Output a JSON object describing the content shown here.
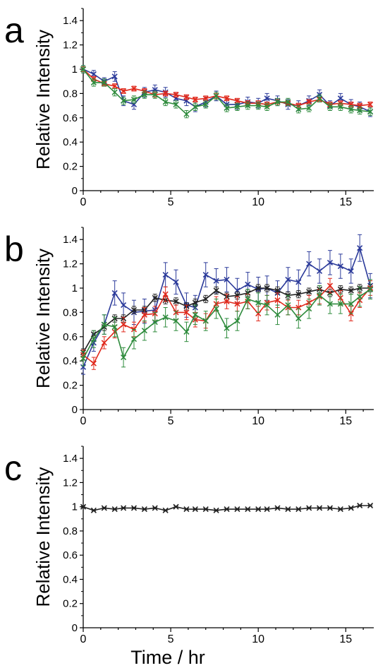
{
  "figure": {
    "x_axis_title": "Time / hr"
  },
  "colors": {
    "blue": "#2b3a9a",
    "red": "#e0291c",
    "green": "#2e8b3c",
    "black": "#222222",
    "axis": "#000000"
  },
  "chart_data": [
    {
      "panel_label": "a",
      "type": "line",
      "ylabel": "Relative Intensity",
      "xlim": [
        0,
        16.6
      ],
      "ylim": [
        0,
        1.5
      ],
      "xticks": [
        0,
        5,
        10,
        15
      ],
      "yticks": [
        0,
        0.2,
        0.4,
        0.6,
        0.8,
        1,
        1.2,
        1.4
      ],
      "x": [
        0,
        0.6,
        1.2,
        1.8,
        2.3,
        2.9,
        3.5,
        4.1,
        4.7,
        5.3,
        5.9,
        6.4,
        7.0,
        7.6,
        8.2,
        8.8,
        9.4,
        10.0,
        10.5,
        11.1,
        11.7,
        12.3,
        12.9,
        13.5,
        14.1,
        14.7,
        15.3,
        15.8,
        16.4
      ],
      "series": [
        {
          "color": "blue",
          "values": [
            1.0,
            0.96,
            0.9,
            0.94,
            0.74,
            0.71,
            0.81,
            0.83,
            0.81,
            0.76,
            0.74,
            0.69,
            0.73,
            0.78,
            0.71,
            0.71,
            0.73,
            0.72,
            0.76,
            0.74,
            0.71,
            0.7,
            0.74,
            0.79,
            0.7,
            0.76,
            0.71,
            0.69,
            0.65
          ],
          "err": [
            0.03,
            0.03,
            0.03,
            0.04,
            0.04,
            0.04,
            0.04,
            0.04,
            0.04,
            0.04,
            0.04,
            0.04,
            0.04,
            0.04,
            0.04,
            0.04,
            0.04,
            0.04,
            0.04,
            0.04,
            0.04,
            0.04,
            0.04,
            0.04,
            0.04,
            0.04,
            0.04,
            0.04,
            0.04
          ]
        },
        {
          "color": "red",
          "values": [
            1.0,
            0.92,
            0.88,
            0.86,
            0.82,
            0.84,
            0.82,
            0.79,
            0.8,
            0.79,
            0.77,
            0.75,
            0.76,
            0.78,
            0.76,
            0.74,
            0.72,
            0.72,
            0.71,
            0.73,
            0.72,
            0.7,
            0.73,
            0.75,
            0.71,
            0.72,
            0.71,
            0.7,
            0.71
          ],
          "err": [
            0.02,
            0.02,
            0.02,
            0.02,
            0.02,
            0.02,
            0.02,
            0.02,
            0.02,
            0.02,
            0.02,
            0.02,
            0.02,
            0.02,
            0.02,
            0.02,
            0.02,
            0.02,
            0.02,
            0.02,
            0.02,
            0.02,
            0.02,
            0.02,
            0.02,
            0.02,
            0.02,
            0.02,
            0.02
          ]
        },
        {
          "color": "green",
          "values": [
            1.0,
            0.89,
            0.89,
            0.81,
            0.74,
            0.75,
            0.79,
            0.79,
            0.73,
            0.71,
            0.63,
            0.69,
            0.71,
            0.78,
            0.68,
            0.69,
            0.7,
            0.7,
            0.69,
            0.73,
            0.73,
            0.67,
            0.68,
            0.76,
            0.69,
            0.69,
            0.67,
            0.66,
            0.65
          ],
          "err": [
            0.03,
            0.03,
            0.03,
            0.03,
            0.03,
            0.03,
            0.03,
            0.03,
            0.03,
            0.03,
            0.03,
            0.03,
            0.03,
            0.03,
            0.03,
            0.03,
            0.03,
            0.03,
            0.03,
            0.03,
            0.03,
            0.03,
            0.03,
            0.03,
            0.03,
            0.03,
            0.03,
            0.03,
            0.03
          ]
        }
      ]
    },
    {
      "panel_label": "b",
      "type": "line",
      "ylabel": "Relative Intensity",
      "xlim": [
        0,
        16.6
      ],
      "ylim": [
        0,
        1.5
      ],
      "xticks": [
        0,
        5,
        10,
        15
      ],
      "yticks": [
        0,
        0.2,
        0.4,
        0.6,
        0.8,
        1,
        1.2,
        1.4
      ],
      "x": [
        0,
        0.6,
        1.2,
        1.8,
        2.3,
        2.9,
        3.5,
        4.1,
        4.7,
        5.3,
        5.9,
        6.4,
        7.0,
        7.6,
        8.2,
        8.8,
        9.4,
        10.0,
        10.5,
        11.1,
        11.7,
        12.3,
        12.9,
        13.5,
        14.1,
        14.7,
        15.3,
        15.8,
        16.4
      ],
      "series": [
        {
          "color": "blue",
          "values": [
            0.35,
            0.55,
            0.7,
            0.96,
            0.86,
            0.8,
            0.81,
            0.82,
            1.11,
            1.05,
            0.86,
            0.84,
            1.11,
            1.06,
            1.07,
            0.98,
            1.03,
            0.99,
            1.0,
            0.96,
            1.07,
            1.05,
            1.2,
            1.14,
            1.21,
            1.18,
            1.14,
            1.33,
            1.02
          ],
          "err": [
            0.06,
            0.07,
            0.08,
            0.1,
            0.1,
            0.1,
            0.1,
            0.1,
            0.1,
            0.1,
            0.1,
            0.1,
            0.1,
            0.1,
            0.1,
            0.1,
            0.1,
            0.1,
            0.1,
            0.1,
            0.1,
            0.1,
            0.1,
            0.1,
            0.1,
            0.1,
            0.1,
            0.11,
            0.1
          ]
        },
        {
          "color": "black",
          "values": [
            0.47,
            0.62,
            0.68,
            0.75,
            0.75,
            0.82,
            0.82,
            0.92,
            0.9,
            0.89,
            0.85,
            0.88,
            0.91,
            0.98,
            0.93,
            0.94,
            0.96,
            1.0,
            1.0,
            0.98,
            0.94,
            0.95,
            0.97,
            0.99,
            0.96,
            0.99,
            0.98,
            1.0,
            1.0
          ],
          "err": [
            0.03,
            0.03,
            0.03,
            0.03,
            0.03,
            0.03,
            0.03,
            0.03,
            0.03,
            0.03,
            0.03,
            0.03,
            0.03,
            0.03,
            0.03,
            0.03,
            0.03,
            0.03,
            0.03,
            0.03,
            0.03,
            0.03,
            0.03,
            0.03,
            0.03,
            0.03,
            0.03,
            0.03,
            0.03
          ]
        },
        {
          "color": "red",
          "values": [
            0.45,
            0.38,
            0.55,
            0.64,
            0.7,
            0.66,
            0.78,
            0.79,
            0.95,
            0.8,
            0.8,
            0.74,
            0.73,
            0.87,
            0.89,
            0.87,
            0.89,
            0.79,
            0.88,
            0.9,
            0.84,
            0.84,
            0.88,
            0.93,
            1.02,
            0.92,
            0.79,
            0.9,
            1.0
          ],
          "err": [
            0.04,
            0.05,
            0.05,
            0.05,
            0.06,
            0.06,
            0.06,
            0.06,
            0.06,
            0.06,
            0.06,
            0.06,
            0.06,
            0.06,
            0.06,
            0.06,
            0.06,
            0.06,
            0.06,
            0.06,
            0.06,
            0.06,
            0.06,
            0.06,
            0.06,
            0.06,
            0.06,
            0.06,
            0.06
          ]
        },
        {
          "color": "green",
          "values": [
            0.42,
            0.58,
            0.7,
            0.68,
            0.43,
            0.58,
            0.65,
            0.72,
            0.76,
            0.73,
            0.64,
            0.78,
            0.73,
            0.83,
            0.67,
            0.73,
            0.91,
            0.88,
            0.86,
            0.78,
            0.86,
            0.75,
            0.83,
            0.94,
            0.87,
            0.87,
            0.87,
            0.93,
            0.99
          ],
          "err": [
            0.06,
            0.07,
            0.08,
            0.08,
            0.08,
            0.08,
            0.08,
            0.08,
            0.08,
            0.08,
            0.08,
            0.08,
            0.08,
            0.08,
            0.08,
            0.08,
            0.08,
            0.08,
            0.08,
            0.08,
            0.08,
            0.08,
            0.08,
            0.08,
            0.08,
            0.08,
            0.08,
            0.08,
            0.08
          ]
        }
      ]
    },
    {
      "panel_label": "c",
      "type": "line",
      "ylabel": "Relative Intensity",
      "xlabel": "Time / hr",
      "xlim": [
        0,
        16.6
      ],
      "ylim": [
        0,
        1.5
      ],
      "xticks": [
        0,
        5,
        10,
        15
      ],
      "yticks": [
        0,
        0.2,
        0.4,
        0.6,
        0.8,
        1,
        1.2,
        1.4
      ],
      "x": [
        0,
        0.6,
        1.2,
        1.8,
        2.3,
        2.9,
        3.5,
        4.1,
        4.7,
        5.3,
        5.9,
        6.4,
        7.0,
        7.6,
        8.2,
        8.8,
        9.4,
        10.0,
        10.5,
        11.1,
        11.7,
        12.3,
        12.9,
        13.5,
        14.1,
        14.7,
        15.3,
        15.8,
        16.4
      ],
      "series": [
        {
          "color": "black",
          "values": [
            1.0,
            0.97,
            0.99,
            0.98,
            0.99,
            0.99,
            0.98,
            0.99,
            0.97,
            1.0,
            0.98,
            0.98,
            0.98,
            0.97,
            0.98,
            0.98,
            0.98,
            0.98,
            0.98,
            0.99,
            0.98,
            0.98,
            0.99,
            0.99,
            0.99,
            0.98,
            0.99,
            1.01,
            1.01
          ],
          "err": [
            0.005,
            0.005,
            0.005,
            0.005,
            0.005,
            0.005,
            0.005,
            0.005,
            0.005,
            0.005,
            0.005,
            0.005,
            0.005,
            0.005,
            0.005,
            0.005,
            0.005,
            0.005,
            0.005,
            0.005,
            0.005,
            0.005,
            0.005,
            0.005,
            0.005,
            0.005,
            0.005,
            0.005,
            0.005
          ]
        }
      ]
    }
  ]
}
